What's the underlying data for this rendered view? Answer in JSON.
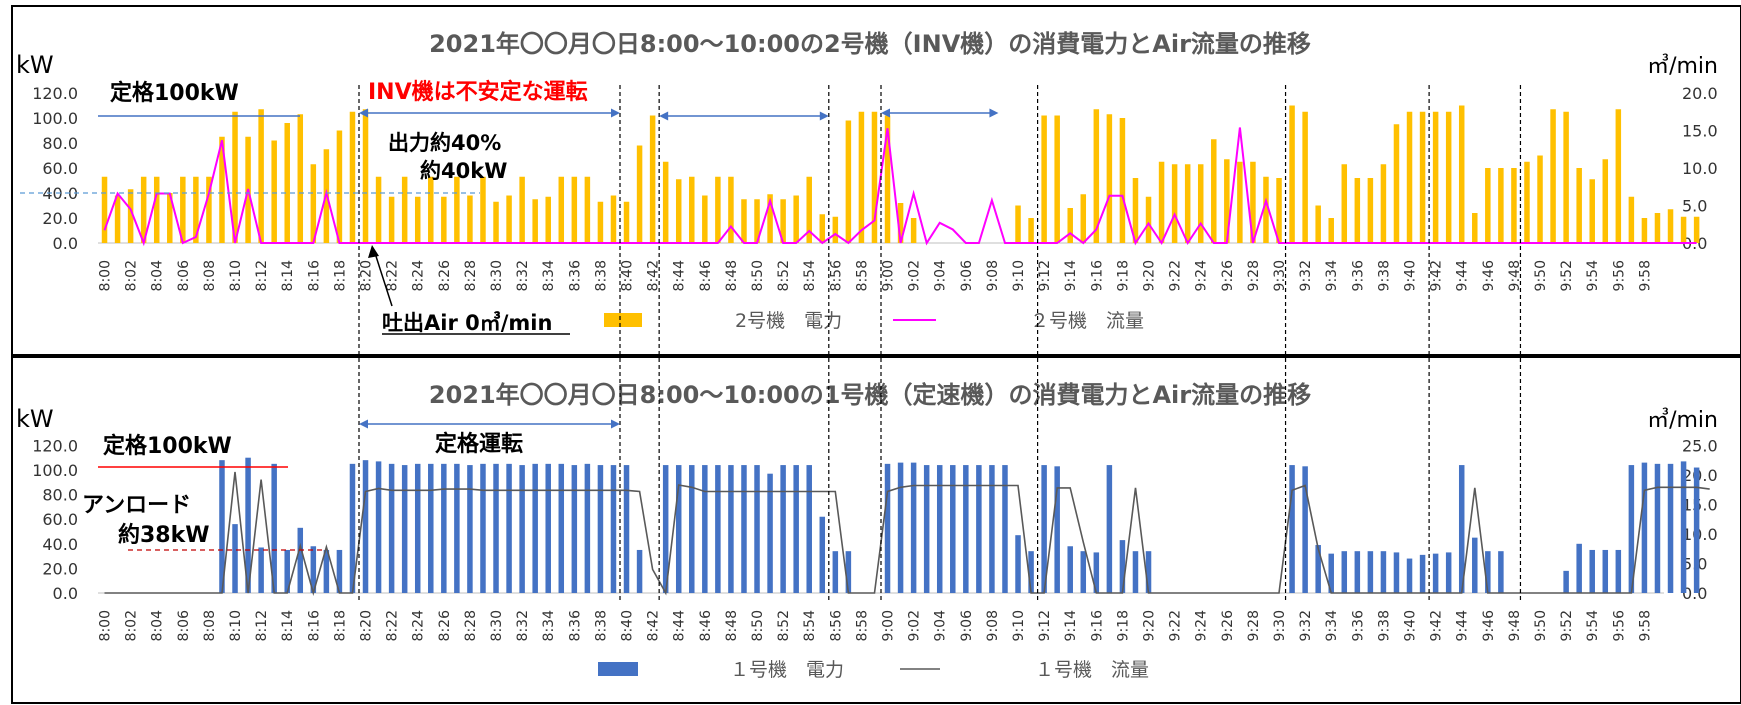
{
  "chart_data": [
    {
      "type": "bar",
      "title": "2021年〇〇月〇日8:00～10:00の2号機（INV機）の消費電力とAir流量の推移",
      "ylabel": "kW",
      "y2label": "㎥/min",
      "ylim": [
        0,
        120
      ],
      "y2lim": [
        0,
        20
      ],
      "yticks": [
        "0.0",
        "20.0",
        "40.0",
        "60.0",
        "80.0",
        "100.0",
        "120.0"
      ],
      "y2ticks": [
        "0.0",
        "5.0",
        "10.0",
        "15.0",
        "20.0"
      ],
      "grid": false,
      "legend_position": "bottom",
      "series": [
        {
          "name": "2号機　電力",
          "kind": "bar",
          "axis": "left",
          "color": "#ffc000",
          "values": [
            53,
            38,
            43,
            53,
            53,
            40,
            53,
            53,
            53,
            85,
            105,
            85,
            107,
            82,
            96,
            103,
            63,
            75,
            90,
            105,
            107,
            53,
            37,
            53,
            37,
            53,
            37,
            53,
            38,
            53,
            33,
            38,
            53,
            35,
            37,
            53,
            53,
            53,
            33,
            38,
            33,
            78,
            102,
            65,
            51,
            53,
            38,
            53,
            53,
            35,
            35,
            39,
            35,
            38,
            53,
            23,
            21,
            98,
            105,
            105,
            102,
            32,
            20,
            0,
            0,
            0,
            0,
            0,
            0,
            0,
            30,
            20,
            102,
            102,
            28,
            39,
            107,
            103,
            100,
            52,
            37,
            65,
            63,
            63,
            63,
            83,
            67,
            65,
            65,
            53,
            52,
            110,
            105,
            30,
            20,
            63,
            52,
            52,
            63,
            95,
            105,
            105,
            105,
            105,
            110,
            24,
            60,
            60,
            60,
            65,
            70,
            107,
            105,
            60,
            51,
            67,
            107,
            37,
            20,
            24,
            27,
            21,
            21
          ]
        },
        {
          "name": "２号機　流量",
          "kind": "line",
          "axis": "right",
          "color": "#ff00ff",
          "values": [
            1.7,
            6.6,
            4.5,
            0,
            6.6,
            6.6,
            0,
            0.8,
            6.6,
            13.7,
            0,
            7.2,
            0,
            0,
            0,
            0,
            0,
            6.7,
            0,
            0,
            0,
            0,
            0,
            0,
            0,
            0,
            0,
            0,
            0,
            0,
            0,
            0,
            0,
            0,
            0,
            0,
            0,
            0,
            0,
            0,
            0,
            0,
            0,
            0,
            0,
            0,
            0,
            0,
            2.2,
            0,
            0,
            5.6,
            0,
            0,
            1.6,
            0,
            1.2,
            0,
            1.7,
            3,
            15.3,
            0,
            6.6,
            0,
            2.7,
            1.8,
            0,
            0,
            5.7,
            0,
            0,
            0,
            0,
            0,
            1.3,
            0,
            1.8,
            6.3,
            6.3,
            0,
            2.6,
            0,
            3.8,
            0,
            2.6,
            0,
            0,
            15.4,
            0,
            5.6,
            0,
            0,
            0,
            0,
            0,
            0,
            0,
            0,
            0,
            0,
            0,
            0,
            0,
            0,
            0,
            0,
            0,
            0,
            0,
            0,
            0,
            0,
            0,
            0,
            0,
            0,
            0,
            0,
            0,
            0,
            0,
            0,
            0
          ]
        }
      ],
      "annotations": {
        "rated": "定格100kW",
        "inv_unstable": "INV機は不安定な運転",
        "output40pct": "出力約40%",
        "about40kw": "約40kW",
        "discharge0": "吐出Air 0㎥/min"
      }
    },
    {
      "type": "bar",
      "title": "2021年〇〇月〇日8:00～10:00の1号機（定速機）の消費電力とAir流量の推移",
      "ylabel": "kW",
      "y2label": "㎥/min",
      "ylim": [
        0,
        120
      ],
      "y2lim": [
        0,
        25
      ],
      "yticks": [
        "0.0",
        "20.0",
        "40.0",
        "60.0",
        "80.0",
        "100.0",
        "120.0"
      ],
      "y2ticks": [
        "0.0",
        "5.0",
        "10.0",
        "15.0",
        "20.0",
        "25.0"
      ],
      "grid": false,
      "legend_position": "bottom",
      "series": [
        {
          "name": "１号機　電力",
          "kind": "bar",
          "axis": "left",
          "color": "#4472c4",
          "values": [
            0,
            0,
            0,
            0,
            0,
            0,
            0,
            0,
            0,
            108,
            56,
            110,
            37,
            105,
            35,
            53,
            38,
            35,
            35,
            105,
            108,
            107,
            105,
            104,
            105,
            105,
            105,
            105,
            104,
            105,
            105,
            105,
            104,
            105,
            105,
            105,
            104,
            105,
            104,
            104,
            104,
            35,
            0,
            104,
            104,
            104,
            104,
            104,
            104,
            104,
            104,
            97,
            104,
            104,
            104,
            62,
            34,
            34,
            0,
            0,
            105,
            106,
            106,
            104,
            104,
            104,
            104,
            104,
            104,
            104,
            47,
            34,
            104,
            103,
            38,
            34,
            33,
            104,
            43,
            34,
            34,
            0,
            0,
            0,
            0,
            0,
            0,
            0,
            0,
            0,
            0,
            104,
            103,
            39,
            32,
            34,
            34,
            34,
            34,
            33,
            28,
            31,
            32,
            33,
            104,
            45,
            34,
            34,
            0,
            0,
            0,
            0,
            18,
            40,
            35,
            35,
            35,
            104,
            106,
            105,
            105,
            107,
            102
          ]
        },
        {
          "name": "１号機　流量",
          "kind": "line",
          "axis": "right",
          "color": "#595959",
          "values": [
            0,
            0,
            0,
            0,
            0,
            0,
            0,
            0,
            0,
            0,
            20.5,
            0,
            19.2,
            0,
            0,
            8,
            0,
            7.8,
            0,
            0,
            17.2,
            17.7,
            17.4,
            17.4,
            17.4,
            17.4,
            17.6,
            17.6,
            17.6,
            17.4,
            17.4,
            17.4,
            17.4,
            17.4,
            17.4,
            17.4,
            17.4,
            17.4,
            17.4,
            17.4,
            17.4,
            17.2,
            4,
            0,
            18.3,
            17.9,
            17.2,
            17.2,
            17.2,
            17.2,
            17.2,
            17.2,
            17.2,
            17.2,
            17.2,
            17.2,
            17.2,
            0,
            0,
            0,
            17.2,
            17.9,
            18.2,
            18.2,
            18.2,
            18.2,
            18.2,
            18.2,
            18.2,
            18.2,
            18.2,
            0,
            0,
            17.8,
            17.8,
            8.6,
            0,
            0,
            0,
            17.8,
            0,
            0,
            0,
            0,
            0,
            0,
            0,
            0,
            0,
            0,
            0,
            17.4,
            18.2,
            7.5,
            0,
            0,
            0,
            0,
            0,
            0,
            0,
            0,
            0,
            0,
            0,
            17.8,
            0,
            0,
            0,
            0,
            0,
            0,
            0,
            0,
            0,
            0,
            0,
            0,
            17.4,
            17.9,
            17.9,
            17.9,
            17.9,
            17.6
          ]
        }
      ],
      "annotations": {
        "rated": "定格100kW",
        "rated_run": "定格運転",
        "unload1": "アンロード",
        "unload2": "約38kW"
      }
    }
  ],
  "time_labels": [
    "8:00",
    "8:02",
    "8:04",
    "8:06",
    "8:08",
    "8:10",
    "8:12",
    "8:14",
    "8:16",
    "8:18",
    "8:20",
    "8:22",
    "8:24",
    "8:26",
    "8:28",
    "8:30",
    "8:32",
    "8:34",
    "8:36",
    "8:38",
    "8:40",
    "8:42",
    "8:44",
    "8:46",
    "8:48",
    "8:50",
    "8:52",
    "8:54",
    "8:56",
    "8:58",
    "9:00",
    "9:02",
    "9:04",
    "9:06",
    "9:08",
    "9:10",
    "9:12",
    "9:14",
    "9:16",
    "9:18",
    "9:20",
    "9:22",
    "9:24",
    "9:26",
    "9:28",
    "9:30",
    "9:32",
    "9:34",
    "9:36",
    "9:38",
    "9:40",
    "9:42",
    "9:44",
    "9:46",
    "9:48",
    "9:50",
    "9:52",
    "9:54",
    "9:56",
    "9:58"
  ]
}
